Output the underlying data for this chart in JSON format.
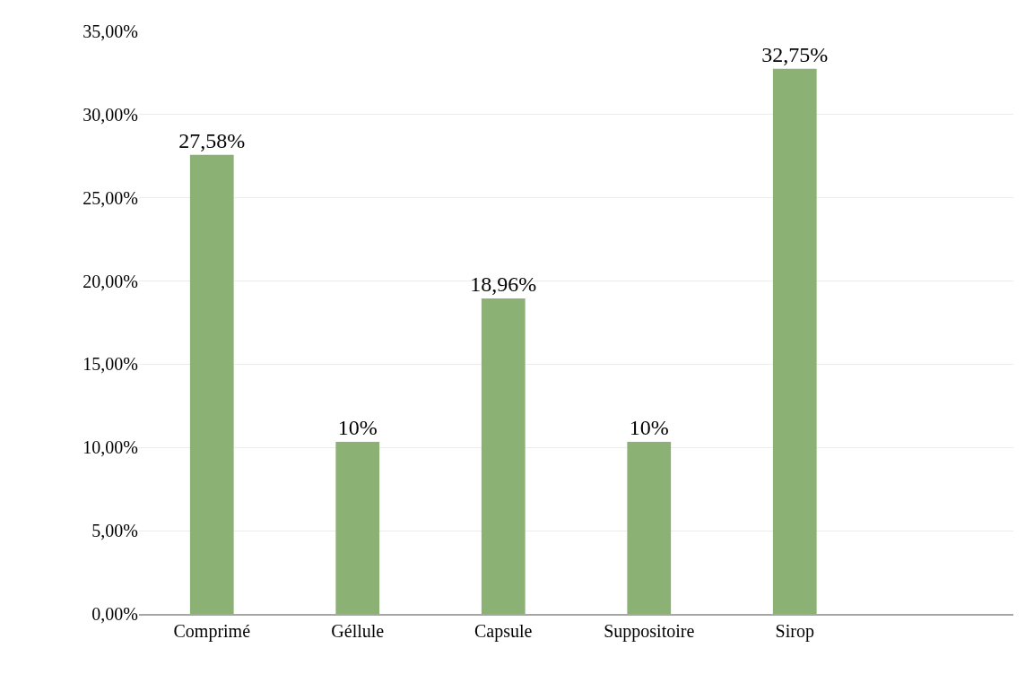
{
  "chart_data": {
    "type": "bar",
    "categories": [
      "Comprimé",
      "Géllule",
      "Capsule",
      "Suppositoire",
      "Sirop",
      null
    ],
    "values": [
      27.58,
      10.34,
      18.96,
      10.34,
      32.75,
      null
    ],
    "value_labels": [
      "27,58%",
      "10%",
      "18,96%",
      "10%",
      "32,75%",
      null
    ],
    "color": "#8bb174",
    "ylim": [
      0,
      35
    ],
    "yticks": [
      {
        "value": 0,
        "label": "0,00%"
      },
      {
        "value": 5,
        "label": "5,00%"
      },
      {
        "value": 10,
        "label": "10,00%"
      },
      {
        "value": 15,
        "label": "15,00%"
      },
      {
        "value": 20,
        "label": "20,00%"
      },
      {
        "value": 25,
        "label": "25,00%"
      },
      {
        "value": 30,
        "label": "30,00%"
      },
      {
        "value": 35,
        "label": "35,00%"
      }
    ],
    "grid": "y"
  }
}
